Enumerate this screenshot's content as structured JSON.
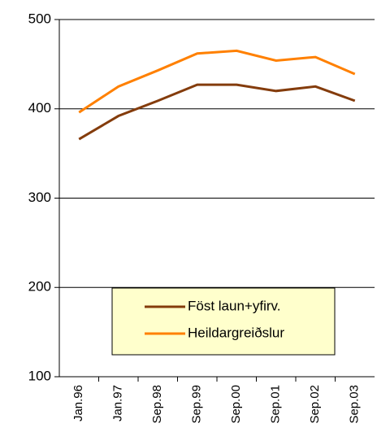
{
  "chart_data": {
    "type": "line",
    "categories": [
      "Jan.96",
      "Jan.97",
      "Sep.98",
      "Sep.99",
      "Sep.00",
      "Sep.01",
      "Sep.02",
      "Sep.03"
    ],
    "series": [
      {
        "name": "Föst laun+yfirv.",
        "color": "#843c0c",
        "values": [
          366,
          392,
          409,
          427,
          427,
          420,
          425,
          409
        ]
      },
      {
        "name": "Heildargreiðslur",
        "color": "#ff8000",
        "values": [
          396,
          425,
          443,
          462,
          465,
          454,
          458,
          439
        ]
      }
    ],
    "ylim": [
      100,
      500
    ],
    "yticks": [
      100,
      200,
      300,
      400,
      500
    ],
    "grid": true,
    "legend": "bottom-right"
  }
}
